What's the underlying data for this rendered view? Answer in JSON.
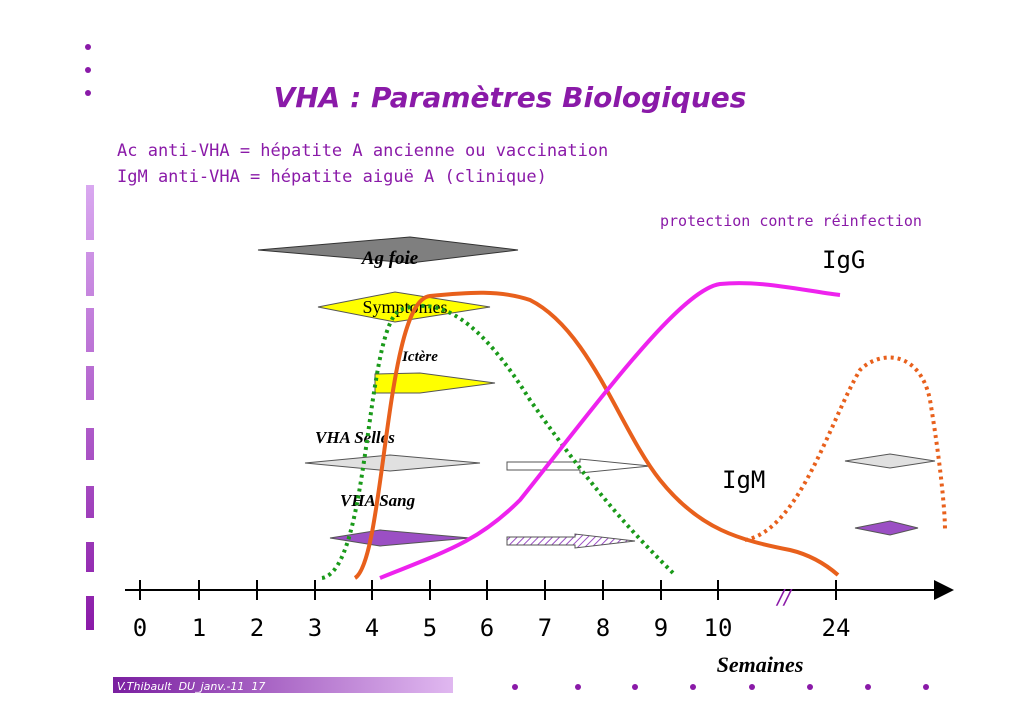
{
  "title": "VHA : Paramètres Biologiques",
  "definitions": [
    "Ac anti-VHA = hépatite A ancienne ou vaccination",
    "IgM anti-VHA = hépatite aiguë A (clinique)"
  ],
  "annotations": {
    "protection": "protection contre réinfection",
    "igg": "IgG",
    "igm": "IgM",
    "ag_foie": "Ag foie",
    "symptomes": "Symptomes",
    "ictere": "Ictère",
    "vha_selles": "VHA Selles",
    "vha_sang": "VHA Sang",
    "break": "//"
  },
  "axis": {
    "ticks": [
      "0",
      "1",
      "2",
      "3",
      "4",
      "5",
      "6",
      "7",
      "8",
      "9",
      "10",
      "24"
    ],
    "label": "Semaines"
  },
  "footer": "V.Thibault  DU_janv.-11  17"
}
